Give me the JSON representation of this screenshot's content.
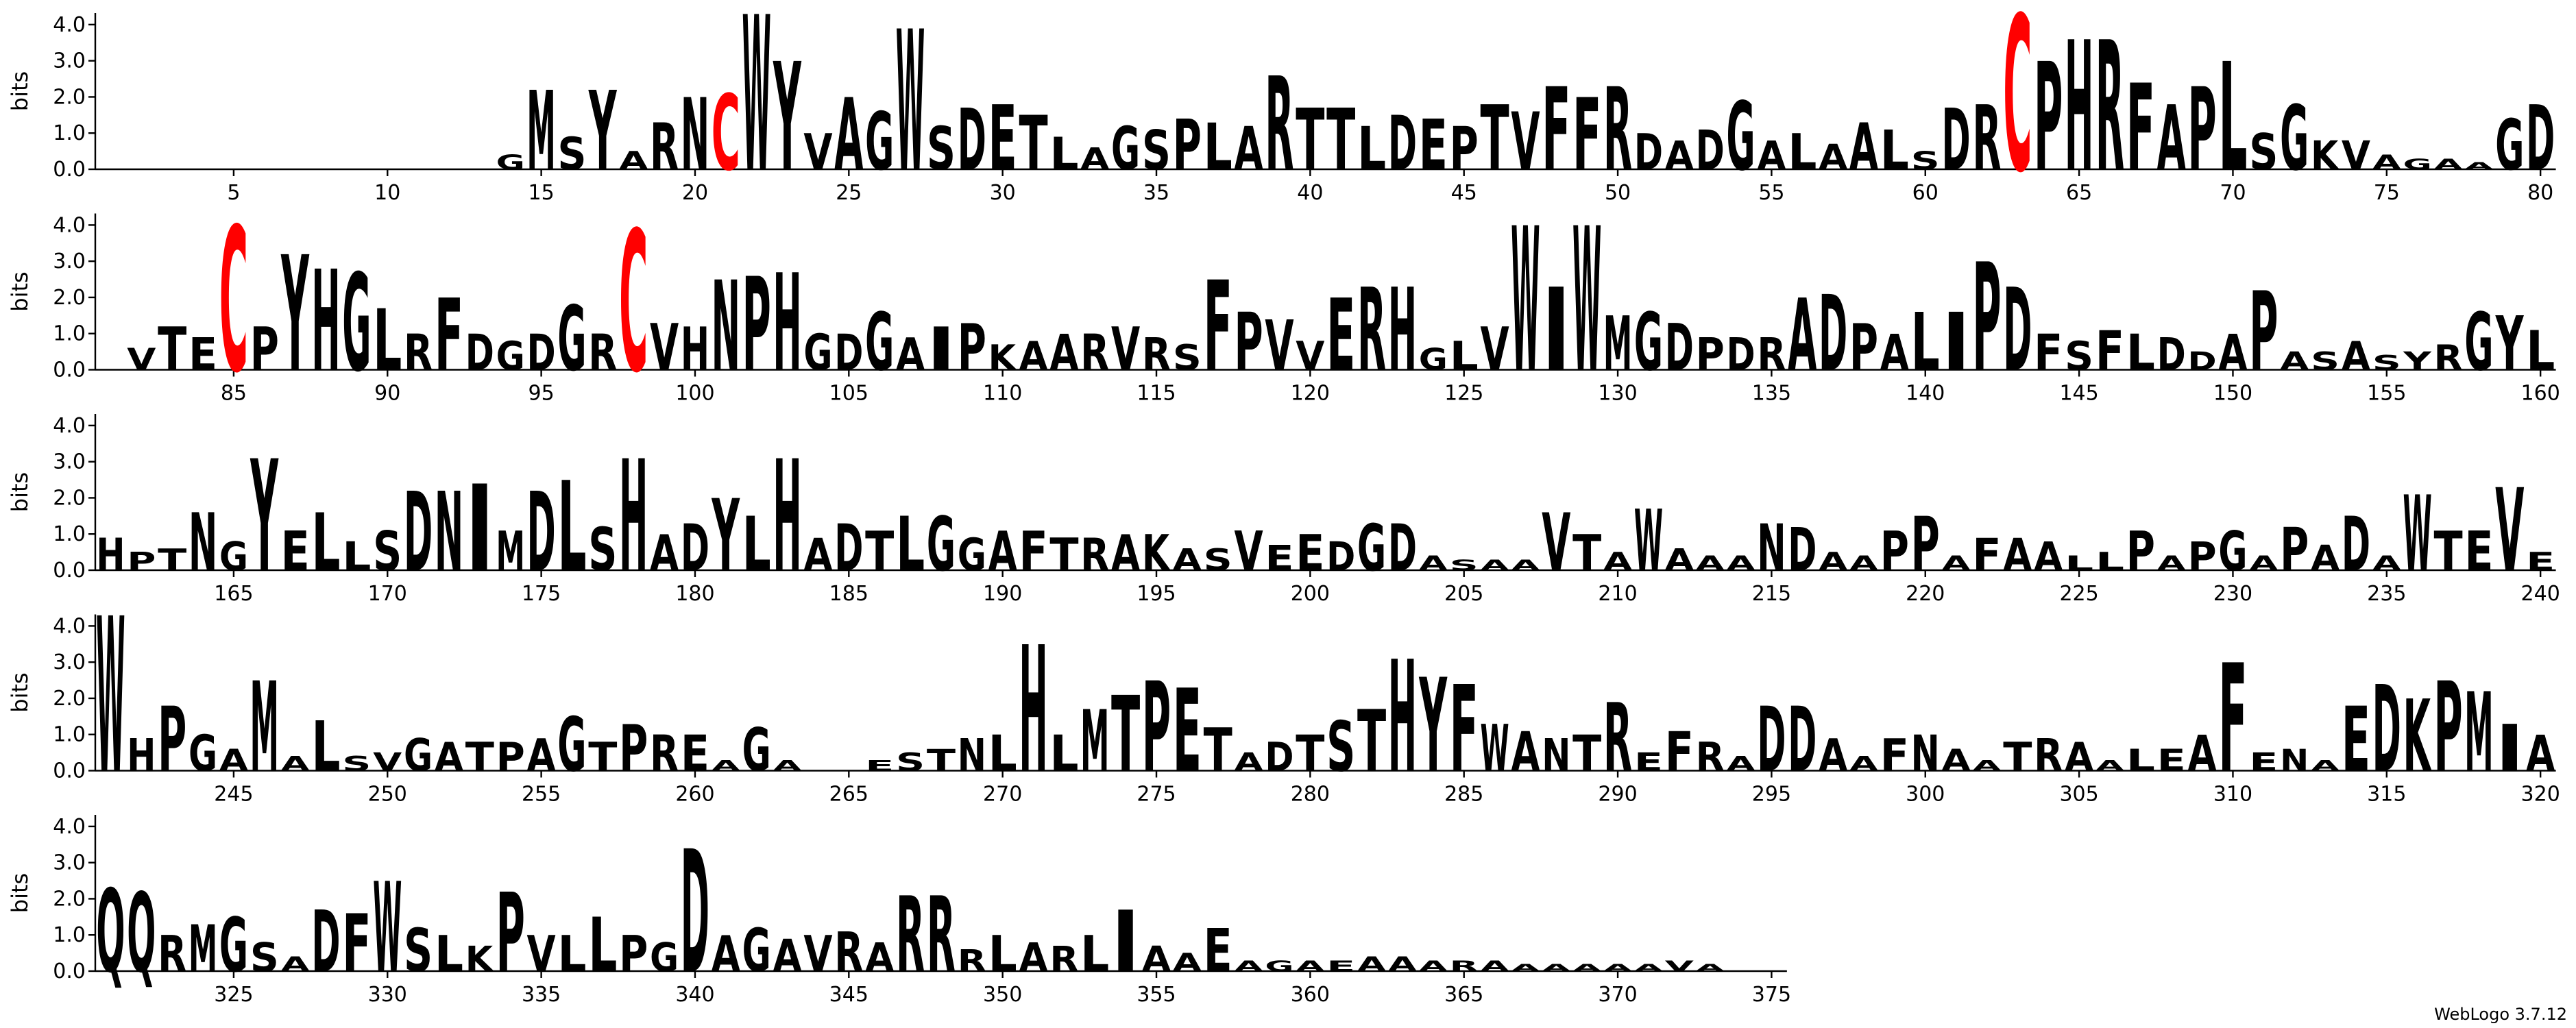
{
  "chart_data": {
    "type": "logo",
    "ylabel": "bits",
    "footer": "WebLogo 3.7.12",
    "color": "#000000",
    "letter_colors": {
      "C": "#ff0000"
    },
    "xlim": [
      1,
      375
    ],
    "ylim": [
      0,
      4.32
    ],
    "yticks": [
      {
        "value": 0,
        "label": "0.0"
      },
      {
        "value": 1,
        "label": "1.0"
      },
      {
        "value": 2,
        "label": "2.0"
      },
      {
        "value": 3,
        "label": "3.0"
      },
      {
        "value": 4,
        "label": "4.0"
      }
    ],
    "xticks": [
      5,
      10,
      15,
      20,
      25,
      30,
      35,
      40,
      45,
      50,
      55,
      60,
      65,
      70,
      75,
      80,
      85,
      90,
      95,
      100,
      105,
      110,
      115,
      120,
      125,
      130,
      135,
      140,
      145,
      150,
      155,
      160,
      165,
      170,
      175,
      180,
      185,
      190,
      195,
      200,
      205,
      210,
      215,
      220,
      225,
      230,
      235,
      240,
      245,
      250,
      255,
      260,
      265,
      270,
      275,
      280,
      285,
      290,
      295,
      300,
      305,
      310,
      315,
      320,
      325,
      330,
      335,
      340,
      345,
      350,
      355,
      360,
      365,
      370,
      375
    ],
    "letters": [
      null,
      null,
      null,
      null,
      null,
      null,
      null,
      null,
      null,
      null,
      null,
      null,
      null,
      "G",
      "M",
      "S",
      "Y",
      "A",
      "R",
      "N",
      "C",
      "W",
      "Y",
      "V",
      "A",
      "G",
      "W",
      "S",
      "D",
      "E",
      "T",
      "L",
      "A",
      "G",
      "S",
      "P",
      "L",
      "A",
      "R",
      "T",
      "T",
      "L",
      "D",
      "E",
      "P",
      "T",
      "V",
      "F",
      "F",
      "R",
      "D",
      "A",
      "D",
      "G",
      "A",
      "L",
      "A",
      "A",
      "L",
      "S",
      "D",
      "R",
      "C",
      "P",
      "H",
      "R",
      "F",
      "A",
      "P",
      "L",
      "S",
      "G",
      "K",
      "V",
      "A",
      "G",
      "A",
      "A",
      "G",
      "D",
      null,
      "V",
      "T",
      "E",
      "C",
      "P",
      "Y",
      "H",
      "G",
      "L",
      "R",
      "F",
      "D",
      "G",
      "D",
      "G",
      "R",
      "C",
      "V",
      "H",
      "N",
      "P",
      "H",
      "G",
      "D",
      "G",
      "A",
      "I",
      "P",
      "K",
      "A",
      "A",
      "R",
      "V",
      "R",
      "S",
      "F",
      "P",
      "V",
      "V",
      "E",
      "R",
      "H",
      "G",
      "L",
      "V",
      "W",
      "I",
      "W",
      "M",
      "G",
      "D",
      "P",
      "D",
      "R",
      "A",
      "D",
      "P",
      "A",
      "L",
      "I",
      "P",
      "D",
      "F",
      "S",
      "F",
      "L",
      "D",
      "D",
      "A",
      "P",
      "A",
      "S",
      "A",
      "S",
      "Y",
      "R",
      "G",
      "Y",
      "L",
      "H",
      "P",
      "T",
      "N",
      "G",
      "Y",
      "E",
      "L",
      "L",
      "S",
      "D",
      "N",
      "I",
      "M",
      "D",
      "L",
      "S",
      "H",
      "A",
      "D",
      "Y",
      "L",
      "H",
      "A",
      "D",
      "T",
      "L",
      "G",
      "G",
      "A",
      "F",
      "T",
      "R",
      "A",
      "K",
      "A",
      "S",
      "V",
      "E",
      "E",
      "D",
      "G",
      "D",
      "A",
      "S",
      "A",
      "A",
      "V",
      "T",
      "A",
      "W",
      "A",
      "A",
      "A",
      "N",
      "D",
      "A",
      "A",
      "P",
      "P",
      "A",
      "F",
      "A",
      "A",
      "L",
      "L",
      "P",
      "A",
      "P",
      "G",
      "A",
      "P",
      "A",
      "D",
      "A",
      "W",
      "T",
      "E",
      "V",
      "E",
      "W",
      "H",
      "P",
      "G",
      "A",
      "M",
      "A",
      "L",
      "S",
      "V",
      "G",
      "A",
      "T",
      "P",
      "A",
      "G",
      "T",
      "P",
      "R",
      "E",
      "A",
      "G",
      "A",
      null,
      null,
      "E",
      "S",
      "T",
      "N",
      "L",
      "H",
      "L",
      "M",
      "T",
      "P",
      "E",
      "T",
      "A",
      "D",
      "T",
      "S",
      "T",
      "H",
      "Y",
      "F",
      "W",
      "A",
      "N",
      "T",
      "R",
      "E",
      "F",
      "R",
      "A",
      "D",
      "D",
      "A",
      "A",
      "F",
      "N",
      "A",
      "A",
      "T",
      "R",
      "A",
      "A",
      "L",
      "E",
      "A",
      "F",
      "E",
      "N",
      "A",
      "E",
      "D",
      "K",
      "P",
      "M",
      "I",
      "A",
      "Q",
      "Q",
      "R",
      "M",
      "G",
      "S",
      "A",
      "D",
      "F",
      "W",
      "S",
      "L",
      "K",
      "P",
      "V",
      "L",
      "L",
      "P",
      "G",
      "D",
      "A",
      "G",
      "A",
      "V",
      "R",
      "A",
      "R",
      "R",
      "R",
      "L",
      "A",
      "R",
      "L",
      "I",
      "A",
      "A",
      "E",
      "A",
      "G",
      "A",
      "E",
      "A",
      "A",
      "A",
      "R",
      "A",
      "A",
      "A",
      "A",
      "A",
      "A",
      "V",
      "A",
      null,
      null
    ],
    "values": [
      null,
      null,
      null,
      null,
      null,
      null,
      null,
      null,
      null,
      null,
      null,
      null,
      null,
      0.4,
      2.2,
      0.9,
      2.2,
      0.5,
      1.3,
      2.0,
      2.1,
      4.3,
      3.0,
      1.0,
      2.0,
      1.6,
      3.9,
      1.2,
      1.7,
      1.8,
      1.5,
      0.9,
      0.6,
      1.2,
      1.1,
      1.4,
      1.3,
      1.2,
      2.6,
      1.7,
      1.7,
      1.2,
      1.5,
      1.4,
      1.2,
      1.8,
      1.6,
      2.3,
      2.0,
      2.3,
      1.0,
      0.8,
      1.1,
      1.9,
      0.8,
      1.0,
      0.7,
      1.3,
      1.1,
      0.5,
      1.7,
      1.8,
      4.3,
      3.0,
      3.6,
      3.6,
      2.4,
      1.8,
      2.3,
      3.0,
      1.0,
      1.8,
      0.8,
      0.8,
      0.4,
      0.3,
      0.3,
      0.2,
      1.4,
      1.8,
      null,
      0.6,
      1.2,
      0.9,
      4.0,
      1.2,
      3.2,
      2.8,
      2.7,
      1.7,
      1.0,
      2.0,
      1.0,
      0.8,
      1.0,
      1.8,
      1.0,
      3.9,
      1.3,
      1.2,
      2.5,
      2.6,
      2.7,
      1.0,
      1.0,
      1.6,
      0.9,
      1.2,
      1.3,
      0.7,
      0.8,
      1.0,
      1.0,
      1.2,
      0.9,
      0.7,
      2.5,
      1.6,
      1.4,
      0.8,
      2.0,
      2.3,
      2.3,
      0.6,
      0.8,
      1.2,
      4.0,
      2.3,
      4.0,
      1.5,
      1.6,
      1.3,
      0.9,
      0.9,
      0.9,
      2.0,
      2.1,
      1.3,
      1.0,
      1.6,
      1.6,
      3.0,
      2.3,
      1.0,
      0.8,
      1.1,
      1.0,
      0.9,
      0.5,
      1.0,
      2.2,
      0.5,
      0.5,
      0.8,
      0.4,
      0.5,
      0.7,
      1.6,
      1.5,
      1.1,
      0.9,
      0.5,
      0.6,
      1.6,
      0.8,
      3.1,
      1.1,
      1.6,
      0.8,
      1.1,
      2.2,
      2.2,
      2.4,
      1.1,
      2.2,
      2.5,
      1.2,
      3.1,
      1.0,
      1.3,
      2.0,
      1.5,
      3.1,
      0.9,
      1.3,
      1.1,
      1.5,
      1.5,
      0.9,
      1.1,
      1.1,
      0.9,
      0.9,
      1.0,
      1.0,
      0.6,
      0.6,
      1.1,
      0.7,
      1.0,
      0.8,
      1.3,
      1.3,
      0.4,
      0.3,
      0.3,
      0.3,
      1.6,
      1.0,
      0.5,
      1.7,
      0.6,
      0.4,
      0.4,
      1.3,
      1.2,
      0.5,
      0.4,
      1.1,
      1.5,
      0.4,
      0.9,
      0.9,
      0.8,
      0.4,
      0.5,
      1.1,
      0.4,
      0.8,
      1.1,
      0.4,
      1.2,
      0.7,
      1.5,
      0.4,
      2.1,
      1.1,
      1.1,
      2.3,
      0.5,
      4.3,
      0.9,
      1.8,
      1.0,
      0.6,
      2.5,
      0.4,
      1.4,
      0.4,
      0.5,
      0.9,
      0.8,
      0.8,
      0.8,
      0.9,
      1.5,
      0.8,
      1.3,
      1.0,
      1.0,
      0.3,
      1.2,
      0.3,
      null,
      null,
      0.3,
      0.5,
      0.6,
      0.9,
      1.0,
      3.5,
      1.0,
      1.7,
      2.1,
      2.5,
      2.3,
      1.2,
      0.5,
      0.8,
      1.0,
      1.4,
      1.7,
      3.1,
      2.6,
      2.4,
      1.3,
      1.1,
      0.9,
      1.0,
      1.9,
      0.5,
      1.1,
      0.8,
      0.4,
      1.8,
      1.8,
      0.9,
      0.4,
      0.9,
      1.0,
      0.6,
      0.3,
      0.8,
      0.9,
      0.8,
      0.3,
      0.6,
      0.6,
      1.0,
      3.0,
      0.5,
      0.6,
      0.3,
      1.8,
      2.4,
      2.0,
      2.5,
      2.2,
      1.3,
      1.0,
      2.3,
      2.2,
      1.0,
      1.3,
      1.5,
      0.8,
      0.4,
      1.7,
      1.6,
      2.5,
      1.2,
      1.0,
      0.7,
      2.2,
      1.0,
      1.0,
      1.5,
      1.0,
      0.8,
      3.4,
      1.0,
      1.2,
      0.9,
      1.0,
      1.1,
      0.8,
      2.1,
      2.1,
      0.6,
      1.0,
      0.8,
      0.7,
      1.0,
      1.7,
      0.7,
      0.5,
      1.2,
      0.3,
      0.3,
      0.3,
      0.3,
      0.4,
      0.4,
      0.3,
      0.3,
      0.3,
      0.2,
      0.2,
      0.2,
      0.2,
      0.2,
      0.3,
      0.2,
      null,
      null
    ]
  }
}
